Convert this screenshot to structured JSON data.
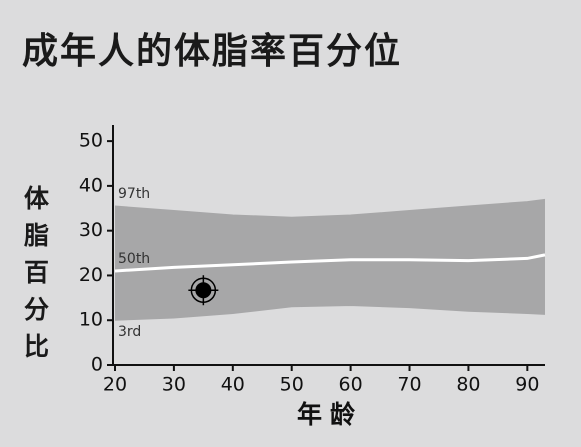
{
  "chart_data": {
    "type": "line",
    "title": "成年人的体脂率百分位",
    "x_label": "年龄",
    "y_label": "体脂百分比",
    "x": [
      20,
      30,
      40,
      50,
      60,
      70,
      80,
      90,
      93
    ],
    "series": [
      {
        "name": "97th",
        "color": "#a7a7a8",
        "values": [
          35.5,
          34.5,
          33.5,
          33,
          33.5,
          34.5,
          35.5,
          36.5,
          37
        ]
      },
      {
        "name": "50th",
        "color": "#ffffff",
        "values": [
          21,
          21.8,
          22.4,
          23,
          23.5,
          23.5,
          23.3,
          23.8,
          24.6
        ]
      },
      {
        "name": "3rd",
        "color": "#a7a7a8",
        "values": [
          10,
          10.5,
          11.5,
          13,
          13.3,
          12.8,
          12,
          11.5,
          11.3
        ]
      }
    ],
    "point": {
      "x": 35,
      "y": 16.7,
      "color": "#000000"
    },
    "xlim": [
      20,
      93
    ],
    "ylim": [
      0,
      53.6
    ],
    "xticks": [
      20,
      30,
      40,
      50,
      60,
      70,
      80,
      90
    ],
    "yticks": [
      0,
      10,
      20,
      30,
      40,
      50
    ]
  }
}
